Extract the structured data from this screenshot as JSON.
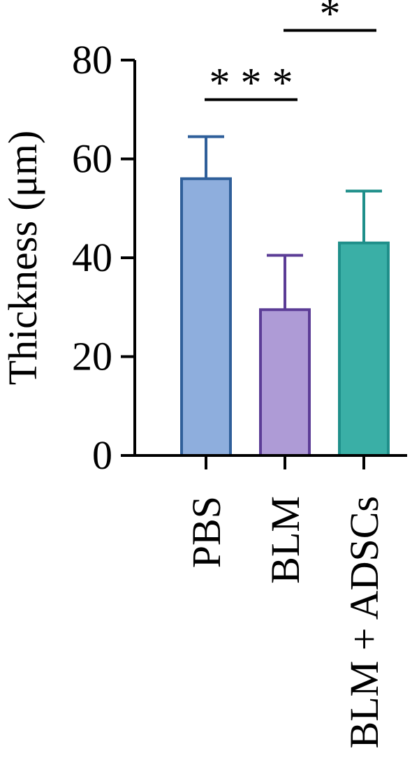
{
  "chart_data": {
    "type": "bar",
    "title": "",
    "xlabel": "",
    "ylabel": "Thickness (μm)",
    "ylim": [
      0,
      80
    ],
    "yticks": [
      "0",
      "20",
      "40",
      "60",
      "80"
    ],
    "grid": false,
    "categories": [
      "PBS",
      "BLM",
      "BLM + ADSCs"
    ],
    "values": [
      56,
      29.5,
      43
    ],
    "error": [
      8.5,
      11,
      10.5
    ],
    "colors": {
      "fill": [
        "#8eaedd",
        "#ae9bd6",
        "#3aafa6"
      ],
      "stroke": [
        "#2f5f9a",
        "#5b3c96",
        "#1f8f8a"
      ],
      "axis": "#000000"
    },
    "significance": [
      {
        "label": "* * *",
        "from": 0,
        "to": 1,
        "y": 72
      },
      {
        "label": "*",
        "from": 1,
        "to": 2,
        "y": 86
      }
    ]
  }
}
